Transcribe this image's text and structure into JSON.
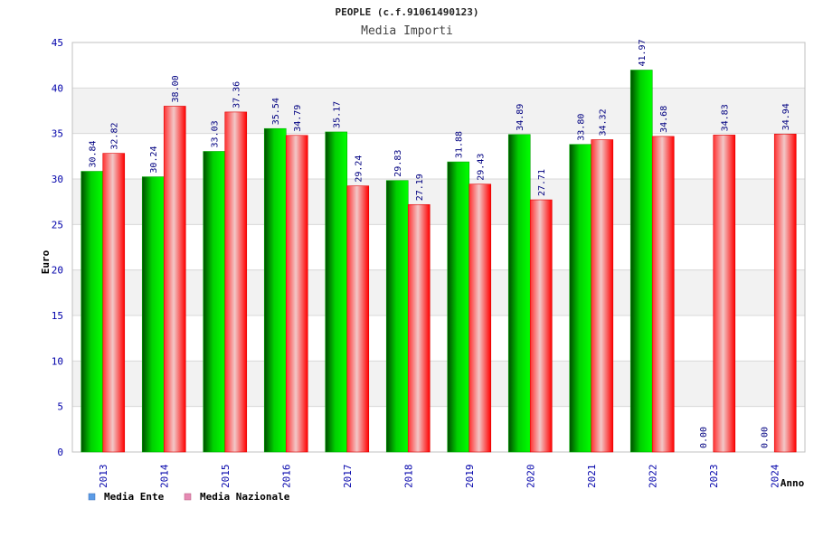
{
  "chart_data": {
    "type": "bar",
    "title": "PEOPLE (c.f.91061490123)",
    "subtitle": "Media Importi",
    "ylabel": "Euro",
    "xlabel": "Anno",
    "ylim": [
      0,
      45
    ],
    "yticks": [
      0,
      5,
      10,
      15,
      20,
      25,
      30,
      35,
      40,
      45
    ],
    "grid": true,
    "legend_position": "bottom-left",
    "categories": [
      "2013",
      "2014",
      "2015",
      "2016",
      "2017",
      "2018",
      "2019",
      "2020",
      "2021",
      "2022",
      "2023",
      "2024"
    ],
    "series": [
      {
        "name": "Media Ente",
        "values": [
          30.84,
          30.24,
          33.03,
          35.54,
          35.17,
          29.83,
          31.88,
          34.89,
          33.8,
          41.97,
          0.0,
          0.0
        ],
        "labels": [
          "30.84",
          "30.24",
          "33.03",
          "35.54",
          "35.17",
          "29.83",
          "31.88",
          "34.89",
          "33.80",
          "41.97",
          "0.00",
          "0.00"
        ],
        "color": "#00b000",
        "legend_color": "#5b9be6"
      },
      {
        "name": "Media Nazionale",
        "values": [
          32.82,
          38.0,
          37.36,
          34.79,
          29.24,
          27.19,
          29.43,
          27.71,
          34.32,
          34.68,
          34.83,
          34.94
        ],
        "labels": [
          "32.82",
          "38.00",
          "37.36",
          "34.79",
          "29.24",
          "27.19",
          "29.43",
          "27.71",
          "34.32",
          "34.68",
          "34.83",
          "34.94"
        ],
        "color": "#f01010",
        "legend_color": "#e68ab4"
      }
    ]
  },
  "colors": {
    "axis_text": "#0000aa",
    "value_label": "#000080",
    "title_text": "#222222",
    "band": "#f2f2f2",
    "grid": "#d8d8d8",
    "axis": "#c0c0c0"
  }
}
